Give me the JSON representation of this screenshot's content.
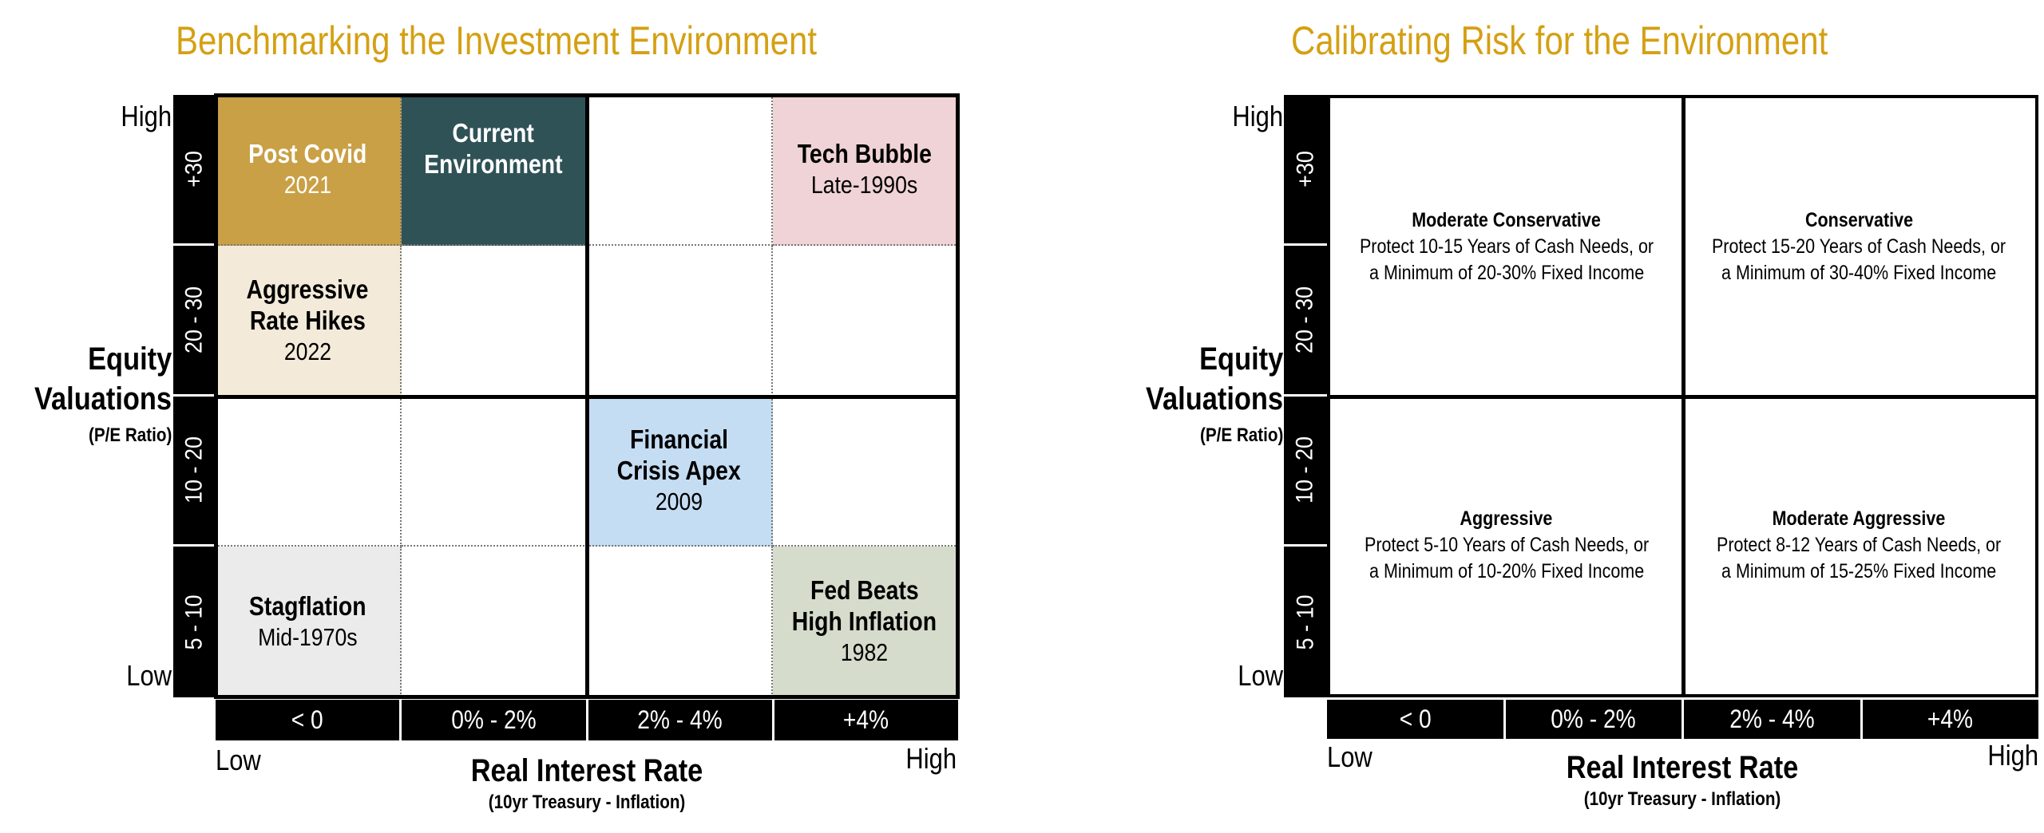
{
  "left": {
    "title": "Benchmarking the Investment Environment",
    "y_high": "High",
    "y_low": "Low",
    "y_title": [
      "Equity",
      "Valuations"
    ],
    "y_subtitle": "(P/E Ratio)",
    "y_ticks": [
      "+30",
      "20 - 30",
      "10 - 20",
      "5 - 10"
    ],
    "x_ticks": [
      "< 0",
      "0% - 2%",
      "2% - 4%",
      "+4%"
    ],
    "x_low": "Low",
    "x_high": "High",
    "x_title": "Real Interest Rate",
    "x_subtitle": "(10yr Treasury - Inflation)",
    "cells": [
      {
        "row": 0,
        "col": 0,
        "heading": [
          "Post Covid"
        ],
        "sub": "2021",
        "fill": "#C9A046",
        "text_color": "#ffffff"
      },
      {
        "row": 0,
        "col": 1,
        "heading": [
          "Current",
          "Environment"
        ],
        "sub": "",
        "fill": "#2F5257",
        "text_color": "#ffffff",
        "offset_up": true
      },
      {
        "row": 0,
        "col": 3,
        "heading": [
          "Tech Bubble"
        ],
        "sub": "Late-1990s",
        "fill": "#F0D3D6",
        "text_color": "#000000"
      },
      {
        "row": 1,
        "col": 0,
        "heading": [
          "Aggressive",
          "Rate Hikes"
        ],
        "sub": "2022",
        "fill": "#F3EAD9",
        "text_color": "#000000"
      },
      {
        "row": 2,
        "col": 2,
        "heading": [
          "Financial",
          "Crisis Apex"
        ],
        "sub": "2009",
        "fill": "#C5DDF3",
        "text_color": "#000000"
      },
      {
        "row": 3,
        "col": 0,
        "heading": [
          "Stagflation"
        ],
        "sub": "Mid-1970s",
        "fill": "#EBEBEB",
        "text_color": "#000000"
      },
      {
        "row": 3,
        "col": 3,
        "heading": [
          "Fed Beats",
          "High Inflation"
        ],
        "sub": "1982",
        "fill": "#D5DCCB",
        "text_color": "#000000"
      }
    ]
  },
  "right": {
    "title": "Calibrating Risk for the Environment",
    "y_high": "High",
    "y_low": "Low",
    "y_title": [
      "Equity",
      "Valuations"
    ],
    "y_subtitle": "(P/E Ratio)",
    "y_ticks": [
      "+30",
      "20 - 30",
      "10 - 20",
      "5 - 10"
    ],
    "x_ticks": [
      "< 0",
      "0% - 2%",
      "2% - 4%",
      "+4%"
    ],
    "x_low": "Low",
    "x_high": "High",
    "x_title": "Real Interest Rate",
    "x_subtitle": "(10yr Treasury - Inflation)",
    "cells": [
      {
        "row": 0,
        "col": 0,
        "heading": "Moderate Conservative",
        "lines": [
          "Protect 10-15 Years of Cash Needs, or",
          "a Minimum of 20-30% Fixed Income"
        ]
      },
      {
        "row": 0,
        "col": 1,
        "heading": "Conservative",
        "lines": [
          "Protect 15-20 Years of Cash Needs, or",
          "a Minimum of 30-40% Fixed Income"
        ]
      },
      {
        "row": 1,
        "col": 0,
        "heading": "Aggressive",
        "lines": [
          "Protect 5-10 Years of Cash Needs, or",
          "a Minimum of 10-20% Fixed Income"
        ]
      },
      {
        "row": 1,
        "col": 1,
        "heading": "Moderate Aggressive",
        "lines": [
          "Protect 8-12 Years of Cash Needs, or",
          "a Minimum of 15-25% Fixed Income"
        ]
      }
    ]
  }
}
